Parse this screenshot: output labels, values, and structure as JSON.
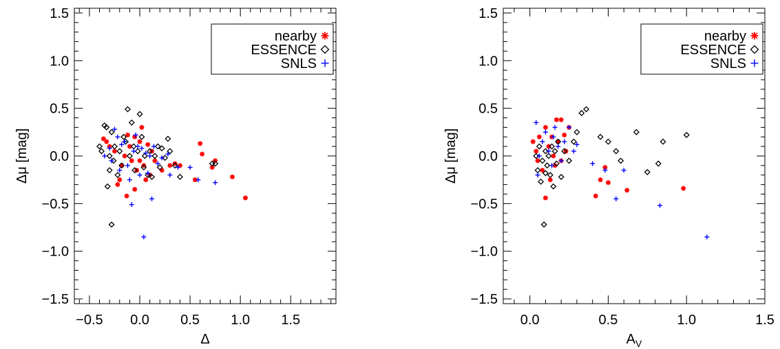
{
  "chart_data": [
    {
      "type": "scatter",
      "title": "",
      "xlabel": "Δ",
      "ylabel": "Δμ  [mag]",
      "xlim": [
        -0.65,
        1.95
      ],
      "ylim": [
        -1.55,
        1.55
      ],
      "xticks": [
        -0.5,
        0.0,
        0.5,
        1.0,
        1.5
      ],
      "xtick_labels": [
        "−0.5",
        "0.0",
        "0.5",
        "1.0",
        "1.5"
      ],
      "yticks": [
        -1.5,
        -1.0,
        -0.5,
        0.0,
        0.5,
        1.0,
        1.5
      ],
      "ytick_labels": [
        "−1.5",
        "−1.0",
        "−0.5",
        "0.0",
        "0.5",
        "1.0",
        "1.5"
      ],
      "grid": false,
      "legend": "top-right",
      "series": [
        {
          "name": "nearby",
          "marker": "asterisk",
          "color": "#ff0000",
          "points": [
            [
              -0.36,
              0.18
            ],
            [
              -0.33,
              0.15
            ],
            [
              -0.3,
              0.1
            ],
            [
              -0.25,
              0.05
            ],
            [
              -0.22,
              -0.3
            ],
            [
              -0.2,
              -0.25
            ],
            [
              -0.18,
              -0.1
            ],
            [
              -0.15,
              0.0
            ],
            [
              -0.13,
              -0.42
            ],
            [
              -0.12,
              0.22
            ],
            [
              -0.1,
              0.1
            ],
            [
              -0.08,
              -0.05
            ],
            [
              -0.05,
              0.2
            ],
            [
              -0.05,
              -0.35
            ],
            [
              -0.03,
              -0.15
            ],
            [
              0.0,
              -0.05
            ],
            [
              0.0,
              0.15
            ],
            [
              0.02,
              0.3
            ],
            [
              0.04,
              -0.1
            ],
            [
              0.06,
              -0.25
            ],
            [
              0.08,
              0.12
            ],
            [
              0.1,
              -0.2
            ],
            [
              0.12,
              0.05
            ],
            [
              0.15,
              -0.05
            ],
            [
              0.22,
              -0.15
            ],
            [
              0.3,
              -0.1
            ],
            [
              0.35,
              -0.08
            ],
            [
              0.4,
              -0.1
            ],
            [
              0.55,
              -0.25
            ],
            [
              0.6,
              0.13
            ],
            [
              0.62,
              0.02
            ],
            [
              0.72,
              -0.12
            ],
            [
              0.75,
              -0.05
            ],
            [
              0.92,
              -0.22
            ],
            [
              1.05,
              -0.44
            ]
          ]
        },
        {
          "name": "ESSENCE",
          "marker": "diamond",
          "color": "#000000",
          "points": [
            [
              -0.4,
              0.1
            ],
            [
              -0.38,
              0.05
            ],
            [
              -0.35,
              0.32
            ],
            [
              -0.33,
              0.3
            ],
            [
              -0.32,
              -0.32
            ],
            [
              -0.3,
              -0.15
            ],
            [
              -0.3,
              0.0
            ],
            [
              -0.28,
              -0.72
            ],
            [
              -0.28,
              0.25
            ],
            [
              -0.26,
              -0.05
            ],
            [
              -0.25,
              0.1
            ],
            [
              -0.22,
              -0.2
            ],
            [
              -0.2,
              0.05
            ],
            [
              -0.18,
              -0.1
            ],
            [
              -0.16,
              0.2
            ],
            [
              -0.14,
              0.15
            ],
            [
              -0.12,
              0.49
            ],
            [
              -0.1,
              0.0
            ],
            [
              -0.08,
              0.35
            ],
            [
              -0.06,
              0.1
            ],
            [
              -0.05,
              -0.15
            ],
            [
              -0.02,
              0.05
            ],
            [
              0.0,
              0.44
            ],
            [
              0.02,
              0.2
            ],
            [
              0.04,
              -0.12
            ],
            [
              0.05,
              0.0
            ],
            [
              0.08,
              -0.2
            ],
            [
              0.1,
              0.05
            ],
            [
              0.12,
              -0.22
            ],
            [
              0.15,
              0.0
            ],
            [
              0.18,
              0.1
            ],
            [
              0.2,
              -0.12
            ],
            [
              0.22,
              0.08
            ],
            [
              0.25,
              -0.02
            ],
            [
              0.28,
              0.18
            ],
            [
              0.3,
              0.05
            ],
            [
              0.35,
              -0.1
            ],
            [
              0.4,
              -0.22
            ],
            [
              0.72,
              -0.08
            ],
            [
              0.75,
              -0.08
            ]
          ]
        },
        {
          "name": "SNLS",
          "marker": "plus",
          "color": "#0000ff",
          "points": [
            [
              -0.35,
              0.0
            ],
            [
              -0.3,
              0.08
            ],
            [
              -0.28,
              -0.05
            ],
            [
              -0.25,
              0.28
            ],
            [
              -0.22,
              0.2
            ],
            [
              -0.2,
              -0.15
            ],
            [
              -0.18,
              0.12
            ],
            [
              -0.15,
              0.15
            ],
            [
              -0.12,
              -0.1
            ],
            [
              -0.1,
              -0.25
            ],
            [
              -0.08,
              -0.51
            ],
            [
              -0.06,
              0.05
            ],
            [
              -0.04,
              0.22
            ],
            [
              -0.02,
              0.1
            ],
            [
              0.0,
              -0.2
            ],
            [
              0.02,
              0.08
            ],
            [
              0.04,
              -0.85
            ],
            [
              0.06,
              0.03
            ],
            [
              0.08,
              -0.18
            ],
            [
              0.1,
              0.0
            ],
            [
              0.12,
              -0.45
            ],
            [
              0.14,
              0.1
            ],
            [
              0.18,
              -0.08
            ],
            [
              0.22,
              -0.02
            ],
            [
              0.28,
              0.02
            ],
            [
              0.3,
              -0.2
            ],
            [
              0.38,
              -0.12
            ],
            [
              0.5,
              -0.12
            ],
            [
              0.58,
              -0.25
            ],
            [
              0.75,
              -0.28
            ]
          ]
        }
      ]
    },
    {
      "type": "scatter",
      "title": "",
      "xlabel": "A",
      "xlabel_sub": "V",
      "ylabel": "Δμ  [mag]",
      "xlim": [
        -0.17,
        1.5
      ],
      "ylim": [
        -1.55,
        1.55
      ],
      "xticks": [
        0.0,
        0.5,
        1.0,
        1.5
      ],
      "xtick_labels": [
        "0.0",
        "0.5",
        "1.0",
        "1.5"
      ],
      "yticks": [
        -1.5,
        -1.0,
        -0.5,
        0.0,
        0.5,
        1.0,
        1.5
      ],
      "ytick_labels": [
        "−1.5",
        "−1.0",
        "−0.5",
        "0.0",
        "0.5",
        "1.0",
        "1.5"
      ],
      "grid": false,
      "legend": "top-right",
      "series": [
        {
          "name": "nearby",
          "marker": "asterisk",
          "color": "#ff0000",
          "points": [
            [
              0.02,
              0.15
            ],
            [
              0.04,
              0.05
            ],
            [
              0.05,
              -0.05
            ],
            [
              0.06,
              0.2
            ],
            [
              0.08,
              -0.15
            ],
            [
              0.1,
              0.3
            ],
            [
              0.1,
              -0.44
            ],
            [
              0.12,
              0.1
            ],
            [
              0.13,
              -0.25
            ],
            [
              0.14,
              0.2
            ],
            [
              0.15,
              0.0
            ],
            [
              0.16,
              -0.1
            ],
            [
              0.17,
              0.38
            ],
            [
              0.18,
              0.15
            ],
            [
              0.2,
              -0.05
            ],
            [
              0.2,
              0.38
            ],
            [
              0.22,
              0.22
            ],
            [
              0.23,
              0.05
            ],
            [
              0.25,
              0.3
            ],
            [
              0.42,
              -0.42
            ],
            [
              0.45,
              -0.25
            ],
            [
              0.48,
              -0.12
            ],
            [
              0.5,
              -0.28
            ],
            [
              0.62,
              -0.36
            ],
            [
              0.98,
              -0.34
            ]
          ]
        },
        {
          "name": "ESSENCE",
          "marker": "diamond",
          "color": "#000000",
          "points": [
            [
              0.04,
              0.0
            ],
            [
              0.05,
              -0.15
            ],
            [
              0.06,
              0.1
            ],
            [
              0.07,
              -0.27
            ],
            [
              0.08,
              -0.05
            ],
            [
              0.09,
              -0.72
            ],
            [
              0.1,
              0.05
            ],
            [
              0.1,
              -0.18
            ],
            [
              0.11,
              -0.1
            ],
            [
              0.12,
              0.0
            ],
            [
              0.13,
              -0.2
            ],
            [
              0.14,
              0.1
            ],
            [
              0.15,
              -0.32
            ],
            [
              0.16,
              0.05
            ],
            [
              0.17,
              -0.08
            ],
            [
              0.18,
              0.15
            ],
            [
              0.2,
              -0.22
            ],
            [
              0.22,
              0.05
            ],
            [
              0.25,
              -0.05
            ],
            [
              0.28,
              0.15
            ],
            [
              0.3,
              0.25
            ],
            [
              0.33,
              0.45
            ],
            [
              0.36,
              0.49
            ],
            [
              0.45,
              0.2
            ],
            [
              0.5,
              0.15
            ],
            [
              0.55,
              0.05
            ],
            [
              0.58,
              -0.05
            ],
            [
              0.68,
              0.25
            ],
            [
              0.75,
              -0.17
            ],
            [
              0.82,
              -0.08
            ],
            [
              0.85,
              0.15
            ],
            [
              1.0,
              0.22
            ]
          ]
        },
        {
          "name": "SNLS",
          "marker": "plus",
          "color": "#0000ff",
          "points": [
            [
              0.04,
              0.35
            ],
            [
              0.05,
              -0.2
            ],
            [
              0.06,
              0.0
            ],
            [
              0.08,
              0.15
            ],
            [
              0.1,
              0.25
            ],
            [
              0.12,
              0.05
            ],
            [
              0.14,
              -0.1
            ],
            [
              0.15,
              0.2
            ],
            [
              0.16,
              0.3
            ],
            [
              0.18,
              0.1
            ],
            [
              0.2,
              -0.05
            ],
            [
              0.22,
              0.15
            ],
            [
              0.25,
              0.3
            ],
            [
              0.28,
              0.05
            ],
            [
              0.3,
              0.12
            ],
            [
              0.4,
              -0.08
            ],
            [
              0.48,
              -0.15
            ],
            [
              0.55,
              -0.45
            ],
            [
              0.6,
              -0.15
            ],
            [
              0.83,
              -0.52
            ],
            [
              1.13,
              -0.85
            ]
          ]
        }
      ]
    }
  ]
}
